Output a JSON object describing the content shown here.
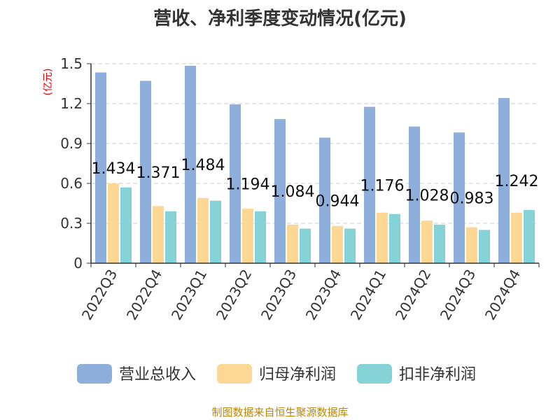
{
  "chart_data": {
    "type": "bar",
    "title": "营收、净利季度变动情况(亿元)",
    "ylabel": "(亿元)",
    "ylim": [
      0,
      1.5
    ],
    "yticks": [
      "0",
      "0.3",
      "0.6",
      "0.9",
      "1.2",
      "1.5"
    ],
    "grid": true,
    "legend_position": "bottom",
    "categories": [
      "2022Q3",
      "2022Q4",
      "2023Q1",
      "2023Q2",
      "2023Q3",
      "2023Q4",
      "2024Q1",
      "2024Q2",
      "2024Q3",
      "2024Q4"
    ],
    "series": [
      {
        "name": "营业总收入",
        "color": "#8eaedc",
        "values": [
          1.434,
          1.371,
          1.484,
          1.194,
          1.084,
          0.944,
          1.176,
          1.028,
          0.983,
          1.242
        ],
        "labels": [
          "1.434",
          "1.371",
          "1.484",
          "1.194",
          "1.084",
          "0.944",
          "1.176",
          "1.028",
          "0.983",
          "1.242"
        ]
      },
      {
        "name": "归母净利润",
        "color": "#fdd794",
        "values": [
          0.6,
          0.43,
          0.49,
          0.41,
          0.29,
          0.28,
          0.38,
          0.32,
          0.27,
          0.38
        ]
      },
      {
        "name": "扣非净利润",
        "color": "#85d3d6",
        "values": [
          0.57,
          0.39,
          0.47,
          0.39,
          0.26,
          0.26,
          0.37,
          0.29,
          0.25,
          0.4
        ]
      }
    ]
  },
  "footer": {
    "source": "制图数据来自恒生聚源数据库"
  }
}
